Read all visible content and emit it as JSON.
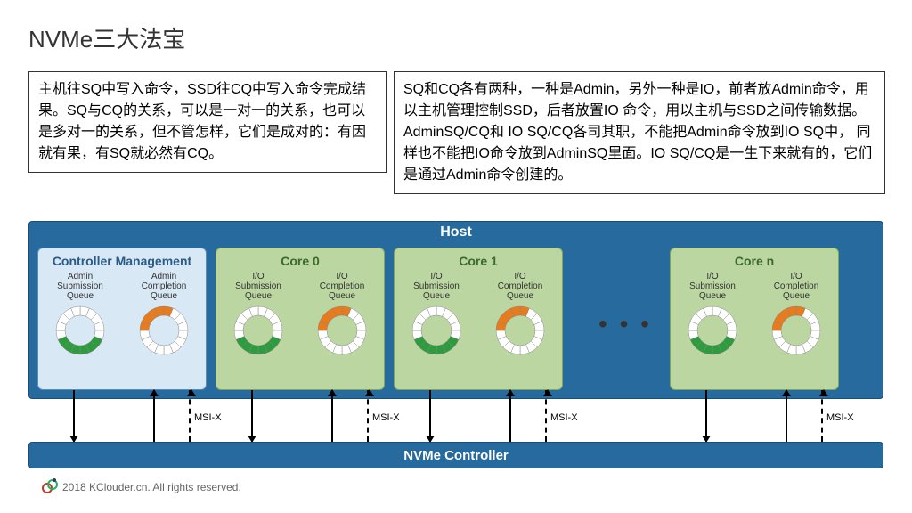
{
  "title": "NVMe三大法宝",
  "textbox1": "主机往SQ中写入命令，SSD往CQ中写入命令完成结果。SQ与CQ的关系，可以是一对一的关系，也可以是多对一的关系，但不管怎样，它们是成对的：有因就有果，有SQ就必然有CQ。",
  "textbox2": "SQ和CQ各有两种，一种是Admin，另外一种是IO，前者放Admin命令，用以主机管理控制SSD，后者放置IO 命令，用以主机与SSD之间传输数据。AdminSQ/CQ和 IO SQ/CQ各司其职，不能把Admin命令放到IO SQ中，  同样也不能把IO命令放到AdminSQ里面。IO SQ/CQ是一生下来就有的，它们是通过Admin命令创建的。",
  "diagram": {
    "host_label": "Host",
    "controller_label": "NVMe Controller",
    "msix_label": "MSI-X",
    "dots": "• • •",
    "boxes": [
      {
        "title": "Controller Management",
        "left_lbl": "Admin\nSubmission\nQueue",
        "right_lbl": "Admin\nCompletion\nQueue"
      },
      {
        "title": "Core 0",
        "left_lbl": "I/O\nSubmission\nQueue",
        "right_lbl": "I/O\nCompletion\nQueue"
      },
      {
        "title": "Core 1",
        "left_lbl": "I/O\nSubmission\nQueue",
        "right_lbl": "I/O\nCompletion\nQueue"
      },
      {
        "title": "Core n",
        "left_lbl": "I/O\nSubmission\nQueue",
        "right_lbl": "I/O\nCompletion\nQueue"
      }
    ],
    "ring_colors": {
      "green": "#2e9b3f",
      "orange": "#e87b1c",
      "empty": "#ffffff",
      "stroke": "#888"
    }
  },
  "footer": "2018 KClouder.cn.  All rights reserved."
}
